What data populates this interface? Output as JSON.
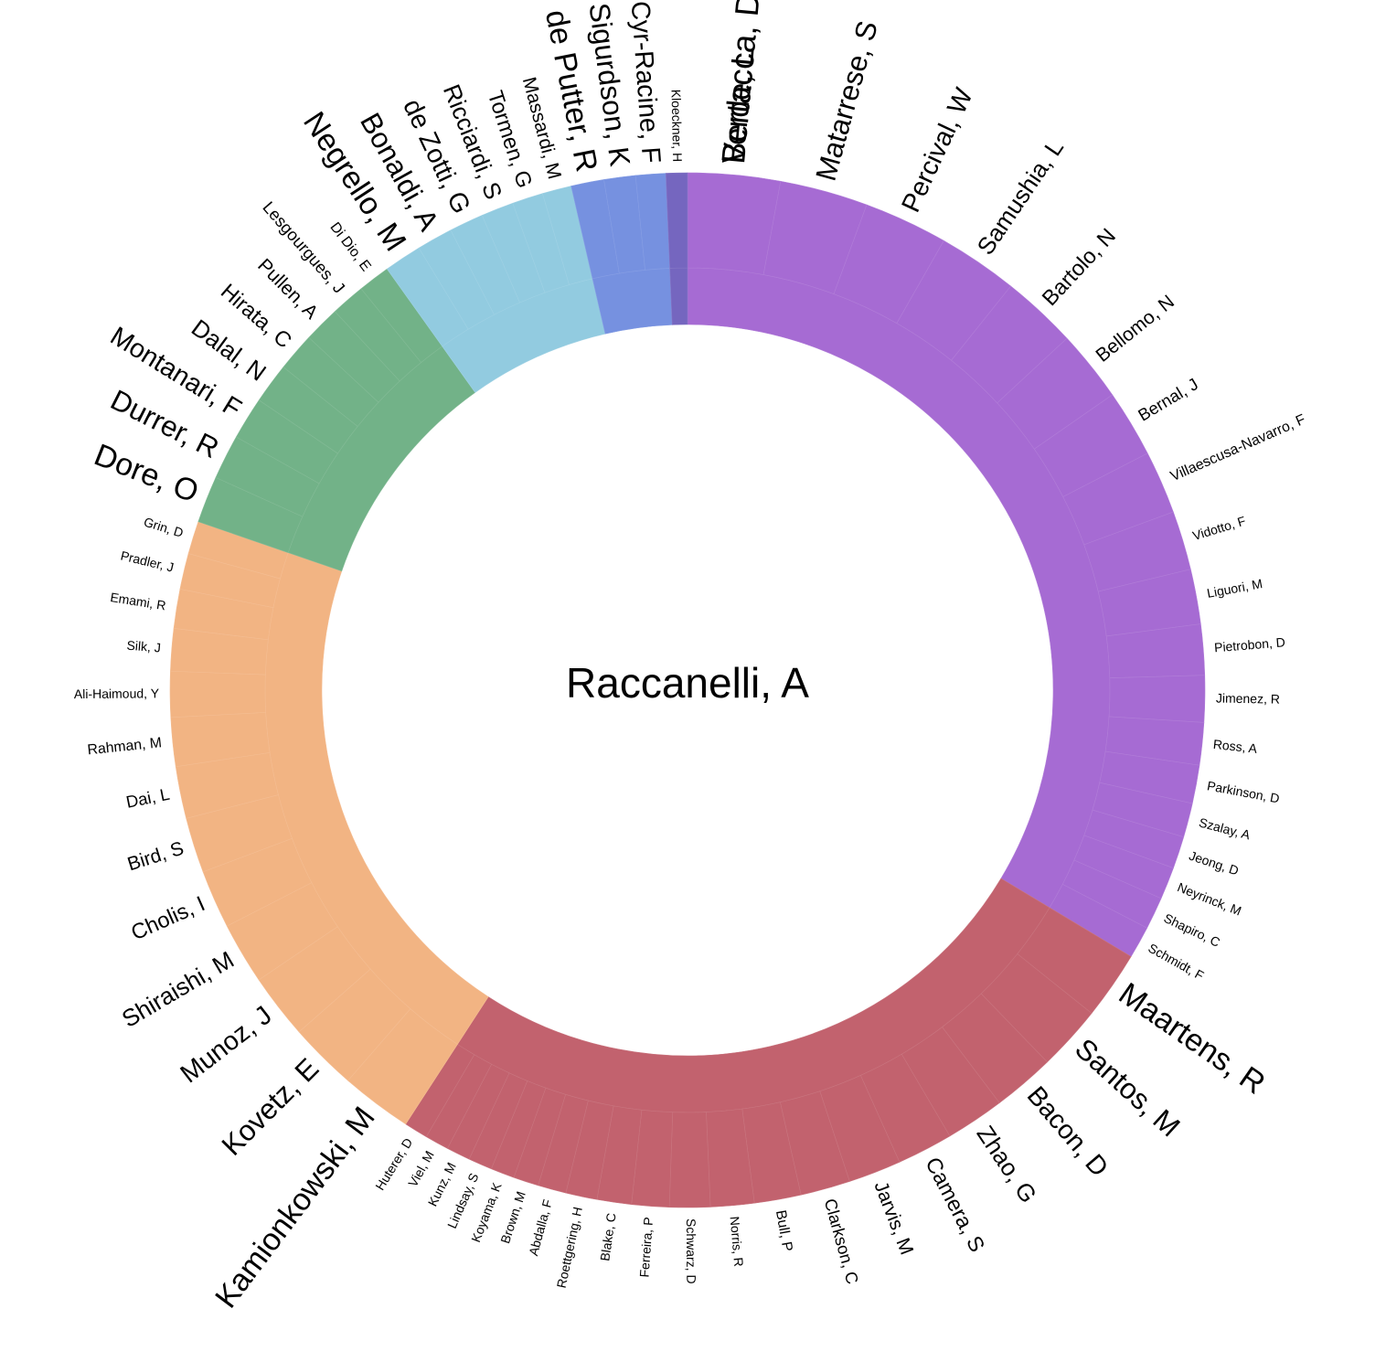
{
  "center_label": "Raccanelli, A",
  "groups": [
    {
      "id": "purple",
      "color": "#a66bd3",
      "authors": [
        "Verde, L",
        "Matarrese, S",
        "Percival, W",
        "Samushia, L",
        "Bartolo, N",
        "Bellomo, N",
        "Bernal, J",
        "Villaescusa-Navarro, F",
        "Vidotto, F",
        "Liguori, M",
        "Pietrobon, D",
        "Jimenez, R",
        "Ross, A",
        "Parkinson, D",
        "Szalay, A",
        "Jeong, D",
        "Neyrinck, M",
        "Shapiro, C",
        "Schmidt, F"
      ]
    },
    {
      "id": "red",
      "color": "#c2626e",
      "authors": [
        "Maartens, R",
        "Santos, M",
        "Bacon, D",
        "Zhao, G",
        "Camera, S",
        "Jarvis, M",
        "Clarkson, C",
        "Bull, P",
        "Norris, R",
        "Schwarz, D",
        "Ferreira, P",
        "Blake, C",
        "Roettgering, H",
        "Abdalla, F",
        "Brown, M",
        "Koyama, K",
        "Lindsay, S",
        "Kunz, M",
        "Viel, M",
        "Huterer, D"
      ]
    },
    {
      "id": "orange",
      "color": "#f2b483",
      "authors": [
        "Kamionkowski, M",
        "Kovetz, E",
        "Munoz, J",
        "Shiraishi, M",
        "Cholis, I",
        "Bird, S",
        "Dai, L",
        "Rahman, M",
        "Ali-Haimoud, Y",
        "Silk, J",
        "Emami, R",
        "Pradler, J",
        "Grin, D"
      ]
    },
    {
      "id": "green",
      "color": "#72b288",
      "authors": [
        "Dore, O",
        "Durrer, R",
        "Montanari, F",
        "Dalal, N",
        "Hirata, C",
        "Pullen, A",
        "Lesgourgues, J",
        "Di Dio, E"
      ]
    },
    {
      "id": "lightblue",
      "color": "#92cbe0",
      "authors": [
        "Negrello, M",
        "Bonaldi, A",
        "de Zotti, G",
        "Ricciardi, S",
        "Tormen, G",
        "Massardi, M"
      ]
    },
    {
      "id": "blue",
      "color": "#7691e0",
      "authors": [
        "de Putter, R",
        "Sigurdson, K",
        "Cyr-Racine, F"
      ]
    },
    {
      "id": "violet",
      "color": "#7566bf",
      "authors": [
        "Kloeckner, H"
      ]
    },
    {
      "id": "violet-top",
      "color": "#a66bd3",
      "authors": [
        "Bertacca, D"
      ]
    }
  ]
}
